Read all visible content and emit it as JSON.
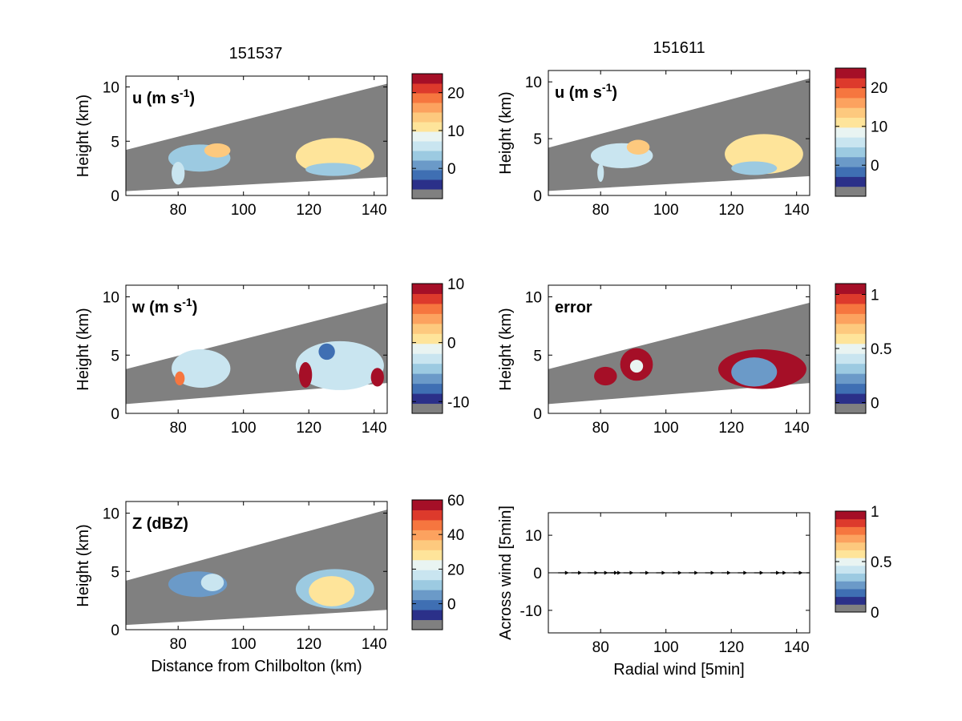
{
  "columns": [
    "151537",
    "151611"
  ],
  "palette": [
    "#808080",
    "#2b3089",
    "#3f6fb3",
    "#6b9ac8",
    "#9ccae1",
    "#c9e5f0",
    "#e9f4f2",
    "#fee49a",
    "#fdc97e",
    "#fca25f",
    "#f6763f",
    "#dd3a2c",
    "#a50f27"
  ],
  "chart_data": [
    {
      "id": "u1",
      "type": "heatmap",
      "column": "151537",
      "label": "u (m s",
      "label_sup": "-1",
      "label_tail": ")",
      "ylabel": "Height (km)",
      "xlabel": "",
      "xlim": [
        64,
        144
      ],
      "ylim": [
        0,
        11
      ],
      "xticks": [
        80,
        100,
        120,
        140
      ],
      "yticks": [
        0,
        5,
        10
      ],
      "beam_top": [
        4.2,
        10.3
      ],
      "beam_bottom": [
        0.4,
        1.7
      ],
      "clim": [
        -8,
        25
      ],
      "cbar_ticks": [
        0,
        10,
        20
      ],
      "blobs": [
        {
          "x": [
            77,
            96
          ],
          "y": [
            2.2,
            4.7
          ],
          "level": 4
        },
        {
          "x": [
            88,
            96
          ],
          "y": [
            3.5,
            4.8
          ],
          "level": 8
        },
        {
          "x": [
            78,
            82
          ],
          "y": [
            1.0,
            3.1
          ],
          "level": 5
        },
        {
          "x": [
            116,
            140
          ],
          "y": [
            1.9,
            5.3
          ],
          "level": 7
        },
        {
          "x": [
            119,
            136
          ],
          "y": [
            1.8,
            3.0
          ],
          "level": 4
        }
      ]
    },
    {
      "id": "u2",
      "type": "heatmap",
      "column": "151611",
      "label": "u (m s",
      "label_sup": "-1",
      "label_tail": ")",
      "ylabel": "Height (km)",
      "xlabel": "",
      "xlim": [
        64,
        144
      ],
      "ylim": [
        0,
        11
      ],
      "xticks": [
        80,
        100,
        120,
        140
      ],
      "yticks": [
        0,
        5,
        10
      ],
      "beam_top": [
        4.2,
        10.3
      ],
      "beam_bottom": [
        0.4,
        1.7
      ],
      "clim": [
        -8,
        25
      ],
      "cbar_ticks": [
        0,
        10,
        20
      ],
      "blobs": [
        {
          "x": [
            77,
            96
          ],
          "y": [
            2.4,
            4.6
          ],
          "level": 5
        },
        {
          "x": [
            88,
            95
          ],
          "y": [
            3.6,
            4.9
          ],
          "level": 8
        },
        {
          "x": [
            79,
            81
          ],
          "y": [
            1.2,
            2.8
          ],
          "level": 5
        },
        {
          "x": [
            118,
            142
          ],
          "y": [
            1.9,
            5.4
          ],
          "level": 7
        },
        {
          "x": [
            120,
            134
          ],
          "y": [
            1.8,
            3.0
          ],
          "level": 4
        }
      ]
    },
    {
      "id": "w1",
      "type": "heatmap",
      "column": "151537",
      "label": "w (m s",
      "label_sup": "-1",
      "label_tail": ")",
      "ylabel": "Height (km)",
      "xlabel": "",
      "xlim": [
        64,
        144
      ],
      "ylim": [
        0,
        11
      ],
      "xticks": [
        80,
        100,
        120,
        140
      ],
      "yticks": [
        0,
        5,
        10
      ],
      "beam_top": [
        3.8,
        9.5
      ],
      "beam_bottom": [
        0.8,
        2.6
      ],
      "clim": [
        -12,
        10
      ],
      "cbar_ticks": [
        -10,
        0,
        10
      ],
      "blobs": [
        {
          "x": [
            78,
            96
          ],
          "y": [
            2.2,
            5.5
          ],
          "level": 5
        },
        {
          "x": [
            116,
            143
          ],
          "y": [
            2.0,
            6.2
          ],
          "level": 5
        },
        {
          "x": [
            117,
            121
          ],
          "y": [
            2.2,
            4.4
          ],
          "level": 12
        },
        {
          "x": [
            139,
            143
          ],
          "y": [
            2.3,
            3.9
          ],
          "level": 12
        },
        {
          "x": [
            79,
            82
          ],
          "y": [
            2.4,
            3.6
          ],
          "level": 10
        },
        {
          "x": [
            123,
            128
          ],
          "y": [
            4.6,
            6.0
          ],
          "level": 2
        }
      ]
    },
    {
      "id": "err",
      "type": "heatmap",
      "column": "151611",
      "label": "error",
      "label_sup": "",
      "label_tail": "",
      "ylabel": "Height (km)",
      "xlabel": "",
      "xlim": [
        64,
        144
      ],
      "ylim": [
        0,
        11
      ],
      "xticks": [
        80,
        100,
        120,
        140
      ],
      "yticks": [
        0,
        5,
        10
      ],
      "beam_top": [
        3.8,
        9.5
      ],
      "beam_bottom": [
        0.8,
        2.6
      ],
      "clim": [
        -0.1,
        1.1
      ],
      "cbar_ticks": [
        0,
        0.5,
        1
      ],
      "blobs": [
        {
          "x": [
            78,
            85
          ],
          "y": [
            2.4,
            4.0
          ],
          "level": 12
        },
        {
          "x": [
            86,
            96
          ],
          "y": [
            2.8,
            5.6
          ],
          "level": 12
        },
        {
          "x": [
            116,
            143
          ],
          "y": [
            2.1,
            5.5
          ],
          "level": 12
        },
        {
          "x": [
            120,
            134
          ],
          "y": [
            2.3,
            4.8
          ],
          "level": 3
        },
        {
          "x": [
            89,
            93
          ],
          "y": [
            3.5,
            4.6
          ],
          "level": 6
        }
      ]
    },
    {
      "id": "z",
      "type": "heatmap",
      "column": "151537",
      "label": "Z (dBZ)",
      "label_sup": "",
      "label_tail": "",
      "ylabel": "Height (km)",
      "xlabel": "Distance from Chilbolton (km)",
      "xlim": [
        64,
        144
      ],
      "ylim": [
        0,
        11
      ],
      "xticks": [
        80,
        100,
        120,
        140
      ],
      "yticks": [
        0,
        5,
        10
      ],
      "beam_top": [
        4.2,
        10.3
      ],
      "beam_bottom": [
        0.4,
        1.7
      ],
      "clim": [
        -15,
        60
      ],
      "cbar_ticks": [
        0,
        20,
        40,
        60
      ],
      "blobs": [
        {
          "x": [
            77,
            95
          ],
          "y": [
            2.8,
            5.0
          ],
          "level": 3
        },
        {
          "x": [
            87,
            94
          ],
          "y": [
            3.3,
            4.8
          ],
          "level": 5
        },
        {
          "x": [
            116,
            140
          ],
          "y": [
            1.8,
            5.2
          ],
          "level": 4
        },
        {
          "x": [
            120,
            134
          ],
          "y": [
            2.0,
            4.6
          ],
          "level": 7
        }
      ]
    },
    {
      "id": "q",
      "type": "quiver",
      "column": "151611",
      "label": "",
      "label_sup": "",
      "label_tail": "",
      "ylabel": "Across wind [5min]",
      "xlabel": "Radial wind [5min]",
      "xlim": [
        64,
        144
      ],
      "ylim": [
        -16,
        16
      ],
      "xticks": [
        80,
        100,
        120,
        140
      ],
      "yticks": [
        -10,
        0,
        10
      ],
      "clim": [
        0,
        1
      ],
      "cbar_ticks": [
        0,
        0.5,
        1
      ],
      "arrows_x": [
        67,
        71,
        76,
        79,
        82,
        83,
        87,
        92,
        97,
        102,
        107,
        112,
        117,
        122,
        127,
        132,
        134,
        139,
        143
      ],
      "arrows_u": [
        2.6,
        2.6,
        2.6,
        2.6,
        2.6,
        2.6,
        2.4,
        2.2,
        2.2,
        2.2,
        2.2,
        2.2,
        2.2,
        2.2,
        2.2,
        2.2,
        2.2,
        2.2,
        2.2
      ],
      "arrows_v": [
        0,
        0,
        0,
        0,
        0,
        0,
        0,
        0,
        0,
        0,
        0,
        0,
        0,
        0,
        0,
        0,
        0,
        0,
        0
      ]
    }
  ]
}
